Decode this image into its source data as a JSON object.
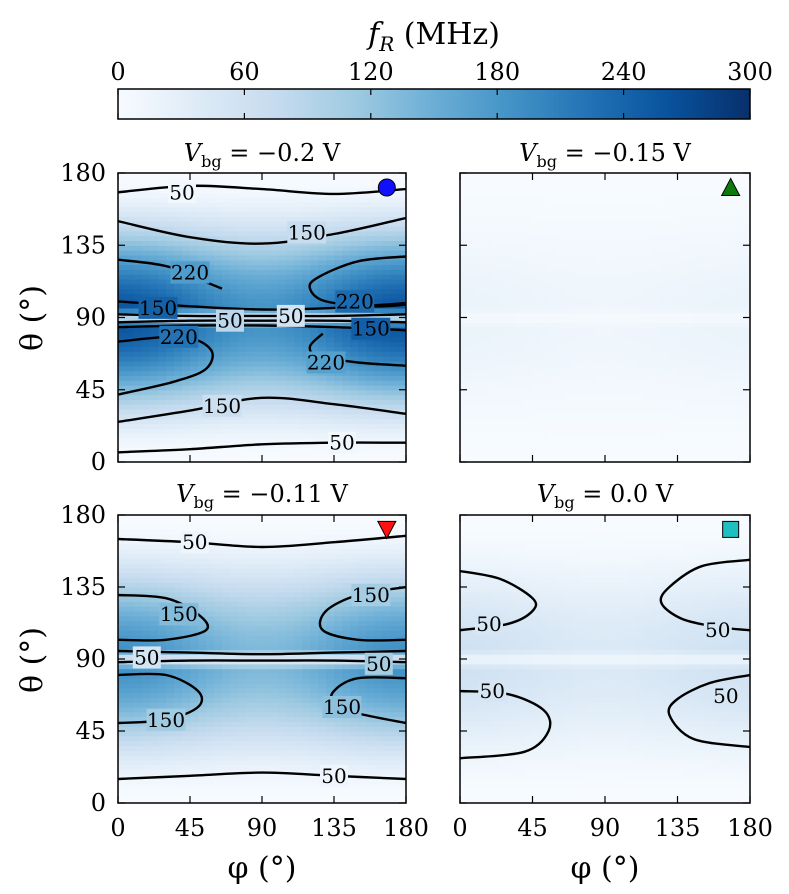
{
  "chart_data": {
    "type": "heatmap",
    "colorbar": {
      "title": "f_R (MHz)",
      "title_symbol": "f",
      "title_sub": "R",
      "title_unit": " (MHz)",
      "range": [
        0,
        300
      ],
      "ticks": [
        "0",
        "60",
        "120",
        "180",
        "240",
        "300"
      ],
      "colormap": "Blues",
      "colors": [
        "#f7fbff",
        "#deebf7",
        "#c6dbef",
        "#9ecae1",
        "#6baed6",
        "#4292c6",
        "#2171b5",
        "#08519c",
        "#08306b"
      ]
    },
    "x_label": "φ (°)",
    "y_label": "θ (°)",
    "x_range": [
      0,
      180
    ],
    "y_range": [
      0,
      180
    ],
    "x_ticks": [
      "0",
      "45",
      "90",
      "135",
      "180"
    ],
    "y_ticks": [
      "0",
      "45",
      "90",
      "135",
      "180"
    ],
    "panels": [
      {
        "title": "V_bg = −0.2 V",
        "title_lhs": "V",
        "title_sub": "bg",
        "title_rhs": " = −0.2 V",
        "marker": "circle",
        "marker_color": "#1010ff",
        "peak": 260,
        "contours": [
          {
            "level": "50",
            "points": [
              [
                0,
                168
              ],
              [
                45,
                172
              ],
              [
                90,
                170
              ],
              [
                135,
                167
              ],
              [
                180,
                170
              ]
            ]
          },
          {
            "level": "150",
            "points": [
              [
                0,
                150
              ],
              [
                45,
                140
              ],
              [
                90,
                136
              ],
              [
                135,
                142
              ],
              [
                180,
                152
              ]
            ]
          },
          {
            "level": "220",
            "points": [
              [
                0,
                126
              ],
              [
                30,
                122
              ],
              [
                55,
                112
              ],
              [
                65,
                108
              ]
            ]
          },
          {
            "level": "150",
            "points": [
              [
                0,
                100
              ],
              [
                45,
                97
              ],
              [
                90,
                95
              ],
              [
                135,
                96
              ],
              [
                180,
                99
              ]
            ]
          },
          {
            "level": "220",
            "points": [
              [
                180,
                128
              ],
              [
                150,
                125
              ],
              [
                125,
                115
              ],
              [
                120,
                108
              ],
              [
                130,
                100
              ],
              [
                160,
                97
              ],
              [
                180,
                98
              ]
            ]
          },
          {
            "level": "50",
            "points": [
              [
                0,
                92
              ],
              [
                45,
                91
              ],
              [
                90,
                91
              ],
              [
                135,
                91
              ],
              [
                180,
                92
              ]
            ]
          },
          {
            "level": "50",
            "points": [
              [
                0,
                87
              ],
              [
                45,
                88
              ],
              [
                90,
                88
              ],
              [
                135,
                88
              ],
              [
                180,
                87
              ]
            ]
          },
          {
            "level": "150",
            "points": [
              [
                0,
                84
              ],
              [
                45,
                85
              ],
              [
                90,
                85
              ],
              [
                135,
                84
              ],
              [
                180,
                82
              ]
            ]
          },
          {
            "level": "220",
            "points": [
              [
                0,
                75
              ],
              [
                40,
                78
              ],
              [
                58,
                70
              ],
              [
                55,
                58
              ],
              [
                35,
                50
              ],
              [
                0,
                42
              ]
            ]
          },
          {
            "level": "220",
            "points": [
              [
                180,
                60
              ],
              [
                150,
                62
              ],
              [
                125,
                66
              ],
              [
                120,
                72
              ],
              [
                128,
                80
              ]
            ]
          },
          {
            "level": "150",
            "points": [
              [
                0,
                25
              ],
              [
                45,
                32
              ],
              [
                90,
                40
              ],
              [
                135,
                36
              ],
              [
                180,
                30
              ]
            ]
          },
          {
            "level": "50",
            "points": [
              [
                0,
                6
              ],
              [
                45,
                8
              ],
              [
                90,
                11
              ],
              [
                135,
                12
              ],
              [
                180,
                12
              ]
            ]
          }
        ],
        "labels": [
          {
            "text": "50",
            "at": [
              40,
              168
            ]
          },
          {
            "text": "150",
            "at": [
              118,
              143
            ]
          },
          {
            "text": "220",
            "at": [
              45,
              118
            ]
          },
          {
            "text": "150",
            "at": [
              25,
              96
            ]
          },
          {
            "text": "220",
            "at": [
              148,
              100
            ]
          },
          {
            "text": "50",
            "at": [
              70,
              88
            ]
          },
          {
            "text": "50",
            "at": [
              108,
              91
            ]
          },
          {
            "text": "150",
            "at": [
              158,
              83
            ]
          },
          {
            "text": "220",
            "at": [
              38,
              78
            ]
          },
          {
            "text": "220",
            "at": [
              130,
              62
            ]
          },
          {
            "text": "150",
            "at": [
              65,
              35
            ]
          },
          {
            "text": "50",
            "at": [
              140,
              12
            ]
          }
        ]
      },
      {
        "title": "V_bg = −0.15 V",
        "title_lhs": "V",
        "title_sub": "bg",
        "title_rhs": " = −0.15 V",
        "marker": "triangle-up",
        "marker_color": "#0d7a0d",
        "peak": 18,
        "contours": [],
        "labels": []
      },
      {
        "title": "V_bg = −0.11 V",
        "title_lhs": "V",
        "title_sub": "bg",
        "title_rhs": " = −0.11 V",
        "marker": "triangle-down",
        "marker_color": "#ff1010",
        "peak": 190,
        "contours": [
          {
            "level": "50",
            "points": [
              [
                0,
                165
              ],
              [
                45,
                163
              ],
              [
                90,
                160
              ],
              [
                135,
                163
              ],
              [
                180,
                167
              ]
            ]
          },
          {
            "level": "150",
            "points": [
              [
                0,
                130
              ],
              [
                30,
                128
              ],
              [
                50,
                118
              ],
              [
                55,
                108
              ],
              [
                30,
                102
              ],
              [
                0,
                102
              ]
            ]
          },
          {
            "level": "150",
            "points": [
              [
                180,
                135
              ],
              [
                150,
                130
              ],
              [
                130,
                120
              ],
              [
                128,
                108
              ],
              [
                150,
                102
              ],
              [
                180,
                102
              ]
            ]
          },
          {
            "level": "50",
            "points": [
              [
                0,
                95
              ],
              [
                45,
                94
              ],
              [
                90,
                93
              ],
              [
                135,
                94
              ],
              [
                180,
                95
              ]
            ]
          },
          {
            "level": "50",
            "points": [
              [
                0,
                88
              ],
              [
                45,
                89
              ],
              [
                90,
                89
              ],
              [
                135,
                89
              ],
              [
                180,
                88
              ]
            ]
          },
          {
            "level": "150",
            "points": [
              [
                0,
                80
              ],
              [
                30,
                80
              ],
              [
                50,
                70
              ],
              [
                50,
                60
              ],
              [
                30,
                52
              ],
              [
                0,
                50
              ]
            ]
          },
          {
            "level": "150",
            "points": [
              [
                180,
                78
              ],
              [
                150,
                78
              ],
              [
                135,
                70
              ],
              [
                135,
                62
              ],
              [
                150,
                56
              ],
              [
                180,
                50
              ]
            ]
          },
          {
            "level": "50",
            "points": [
              [
                0,
                15
              ],
              [
                45,
                17
              ],
              [
                90,
                19
              ],
              [
                135,
                17
              ],
              [
                180,
                15
              ]
            ]
          }
        ],
        "labels": [
          {
            "text": "50",
            "at": [
              48,
              163
            ]
          },
          {
            "text": "150",
            "at": [
              38,
              118
            ]
          },
          {
            "text": "150",
            "at": [
              158,
              130
            ]
          },
          {
            "text": "50",
            "at": [
              18,
              91
            ]
          },
          {
            "text": "50",
            "at": [
              163,
              87
            ]
          },
          {
            "text": "150",
            "at": [
              30,
              52
            ]
          },
          {
            "text": "150",
            "at": [
              140,
              60
            ]
          },
          {
            "text": "50",
            "at": [
              135,
              17
            ]
          }
        ]
      },
      {
        "title": "V_bg = 0.0 V",
        "title_lhs": "V",
        "title_sub": "bg",
        "title_rhs": " = 0.0 V",
        "marker": "square",
        "marker_color": "#1fbfbf",
        "peak": 60,
        "contours": [
          {
            "level": "50",
            "points": [
              [
                0,
                145
              ],
              [
                25,
                140
              ],
              [
                45,
                128
              ],
              [
                45,
                120
              ],
              [
                30,
                112
              ],
              [
                0,
                108
              ]
            ]
          },
          {
            "level": "50",
            "points": [
              [
                180,
                152
              ],
              [
                150,
                148
              ],
              [
                130,
                135
              ],
              [
                125,
                125
              ],
              [
                138,
                115
              ],
              [
                160,
                110
              ],
              [
                180,
                108
              ]
            ]
          },
          {
            "level": "50",
            "points": [
              [
                0,
                70
              ],
              [
                30,
                68
              ],
              [
                52,
                58
              ],
              [
                55,
                45
              ],
              [
                40,
                32
              ],
              [
                0,
                28
              ]
            ]
          },
          {
            "level": "50",
            "points": [
              [
                180,
                80
              ],
              [
                155,
                75
              ],
              [
                135,
                65
              ],
              [
                130,
                55
              ],
              [
                145,
                40
              ],
              [
                180,
                35
              ]
            ]
          }
        ],
        "labels": [
          {
            "text": "50",
            "at": [
              18,
              112
            ]
          },
          {
            "text": "50",
            "at": [
              160,
              108
            ]
          },
          {
            "text": "50",
            "at": [
              20,
              70
            ]
          },
          {
            "text": "50",
            "at": [
              165,
              67
            ]
          }
        ]
      }
    ]
  }
}
